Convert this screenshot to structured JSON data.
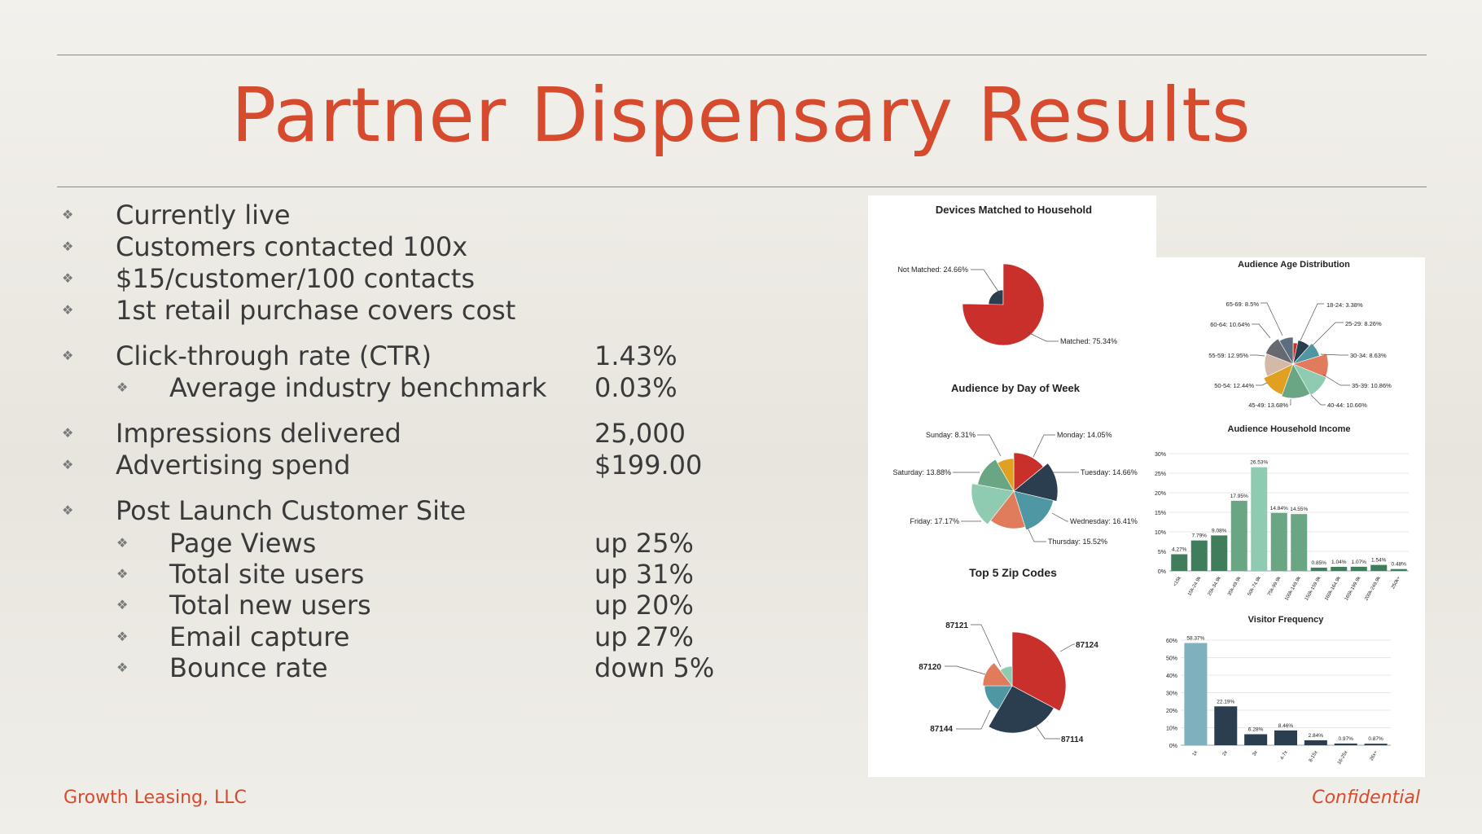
{
  "title": "Partner Dispensary Results",
  "footer": {
    "left": "Growth Leasing, LLC",
    "right": "Confidential"
  },
  "bullet_glyph": "❖",
  "items": [
    {
      "label": "Currently live",
      "value": ""
    },
    {
      "label": "Customers contacted 100x",
      "value": ""
    },
    {
      "label": "$15/customer/100 contacts",
      "value": ""
    },
    {
      "label": "1st retail purchase covers cost",
      "value": ""
    },
    {
      "label": "Click-through rate (CTR)",
      "value": "1.43%"
    },
    {
      "label": "Average industry benchmark",
      "value": "0.03%"
    },
    {
      "label": "Impressions delivered",
      "value": "25,000"
    },
    {
      "label": "Advertising spend",
      "value": "$199.00"
    },
    {
      "label": "Post Launch Customer Site",
      "value": ""
    },
    {
      "label": "Page Views",
      "value": "up 25%"
    },
    {
      "label": "Total site users",
      "value": "up 31%"
    },
    {
      "label": "Total new users",
      "value": "up 20%"
    },
    {
      "label": "Email capture",
      "value": "up 27%"
    },
    {
      "label": "Bounce rate",
      "value": "down 5%"
    }
  ],
  "chart_data": [
    {
      "type": "pie",
      "title": "Devices Matched to Household",
      "labels": [
        "Not Matched: 24.66%",
        "Matched: 75.34%"
      ],
      "values": [
        24.66,
        75.34
      ],
      "colors": [
        "#2b3e4f",
        "#c9302c"
      ]
    },
    {
      "type": "pie",
      "title": "Audience by Day of Week",
      "labels": [
        "Monday: 14.05%",
        "Tuesday: 14.66%",
        "Wednesday: 16.41%",
        "Thursday: 15.52%",
        "Friday: 17.17%",
        "Saturday: 13.88%",
        "Sunday: 8.31%"
      ],
      "values": [
        14.05,
        14.66,
        16.41,
        15.52,
        17.17,
        13.88,
        8.31
      ],
      "colors": [
        "#c9302c",
        "#2b3e4f",
        "#4f97a3",
        "#e07b5b",
        "#8ecbb0",
        "#6aa584",
        "#e0a020"
      ]
    },
    {
      "type": "pie",
      "title": "Top 5 Zip Codes",
      "labels": [
        "87124",
        "87114",
        "87144",
        "87120",
        "87121"
      ],
      "colors": [
        "#c9302c",
        "#2b3e4f",
        "#4f97a3",
        "#e07b5b",
        "#8ecbb0"
      ]
    },
    {
      "type": "pie",
      "title": "Audience Age Distribution",
      "labels": [
        "18-24: 3.38%",
        "25-29: 8.26%",
        "30-34: 8.63%",
        "35-39: 10.86%",
        "40-44: 10.66%",
        "45-49: 13.68%",
        "50-54: 12.44%",
        "55-59: 12.95%",
        "60-64: 10.64%",
        "65-69: 8.5%"
      ],
      "values": [
        3.38,
        8.26,
        8.63,
        10.86,
        10.66,
        13.68,
        12.44,
        12.95,
        10.64,
        8.5
      ],
      "colors": [
        "#c9302c",
        "#2b3e4f",
        "#4f97a3",
        "#e07b5b",
        "#8ecbb0",
        "#6aa584",
        "#e0a020",
        "#d4b8a8",
        "#666a70",
        "#5a6e80"
      ]
    },
    {
      "type": "bar",
      "title": "Audience Household Income",
      "categories": [
        "<15k",
        "15k-24.9k",
        "25k-34.9k",
        "35k-49.9k",
        "50k-74.9k",
        "75k-99.9k",
        "100k-149.9k",
        "150k-159.9k",
        "160k-164.9k",
        "165k-199.9k",
        "200k-249.9k",
        "250k+"
      ],
      "values": [
        4.27,
        7.79,
        9.08,
        17.95,
        26.53,
        14.84,
        14.55,
        0.85,
        1.04,
        1.07,
        1.54,
        0.48
      ],
      "labels": [
        "4.27%",
        "7.79%",
        "9.08%",
        "17.95%",
        "26.53%",
        "14.84%",
        "14.55%",
        "0.85%",
        "1.04%",
        "1.07%",
        "1.54%",
        "0.48%"
      ],
      "yticks": [
        "0%",
        "5%",
        "10%",
        "15%",
        "20%",
        "25%",
        "30%"
      ],
      "ylim": [
        0,
        30
      ],
      "colors": [
        "#3f7d5c",
        "#3f7d5c",
        "#3f7d5c",
        "#6aa584",
        "#8ecbb0",
        "#6aa584",
        "#6aa584",
        "#3f7d5c",
        "#3f7d5c",
        "#3f7d5c",
        "#3f7d5c",
        "#3f7d5c"
      ]
    },
    {
      "type": "bar",
      "title": "Visitor Frequency",
      "categories": [
        "1x",
        "2x",
        "3x",
        "4-7x",
        "8-15x",
        "16-25x",
        "26x+"
      ],
      "values": [
        58.37,
        22.19,
        6.28,
        8.46,
        2.84,
        0.97,
        0.87
      ],
      "labels": [
        "58.37%",
        "22.19%",
        "6.28%",
        "8.46%",
        "2.84%",
        "0.97%",
        "0.87%"
      ],
      "yticks": [
        "0%",
        "10%",
        "20%",
        "30%",
        "40%",
        "50%",
        "60%"
      ],
      "ylim": [
        0,
        60
      ],
      "colors": [
        "#7fb0bd",
        "#2b3e4f",
        "#2b3e4f",
        "#2b3e4f",
        "#2b3e4f",
        "#2b3e4f",
        "#2b3e4f"
      ]
    }
  ]
}
